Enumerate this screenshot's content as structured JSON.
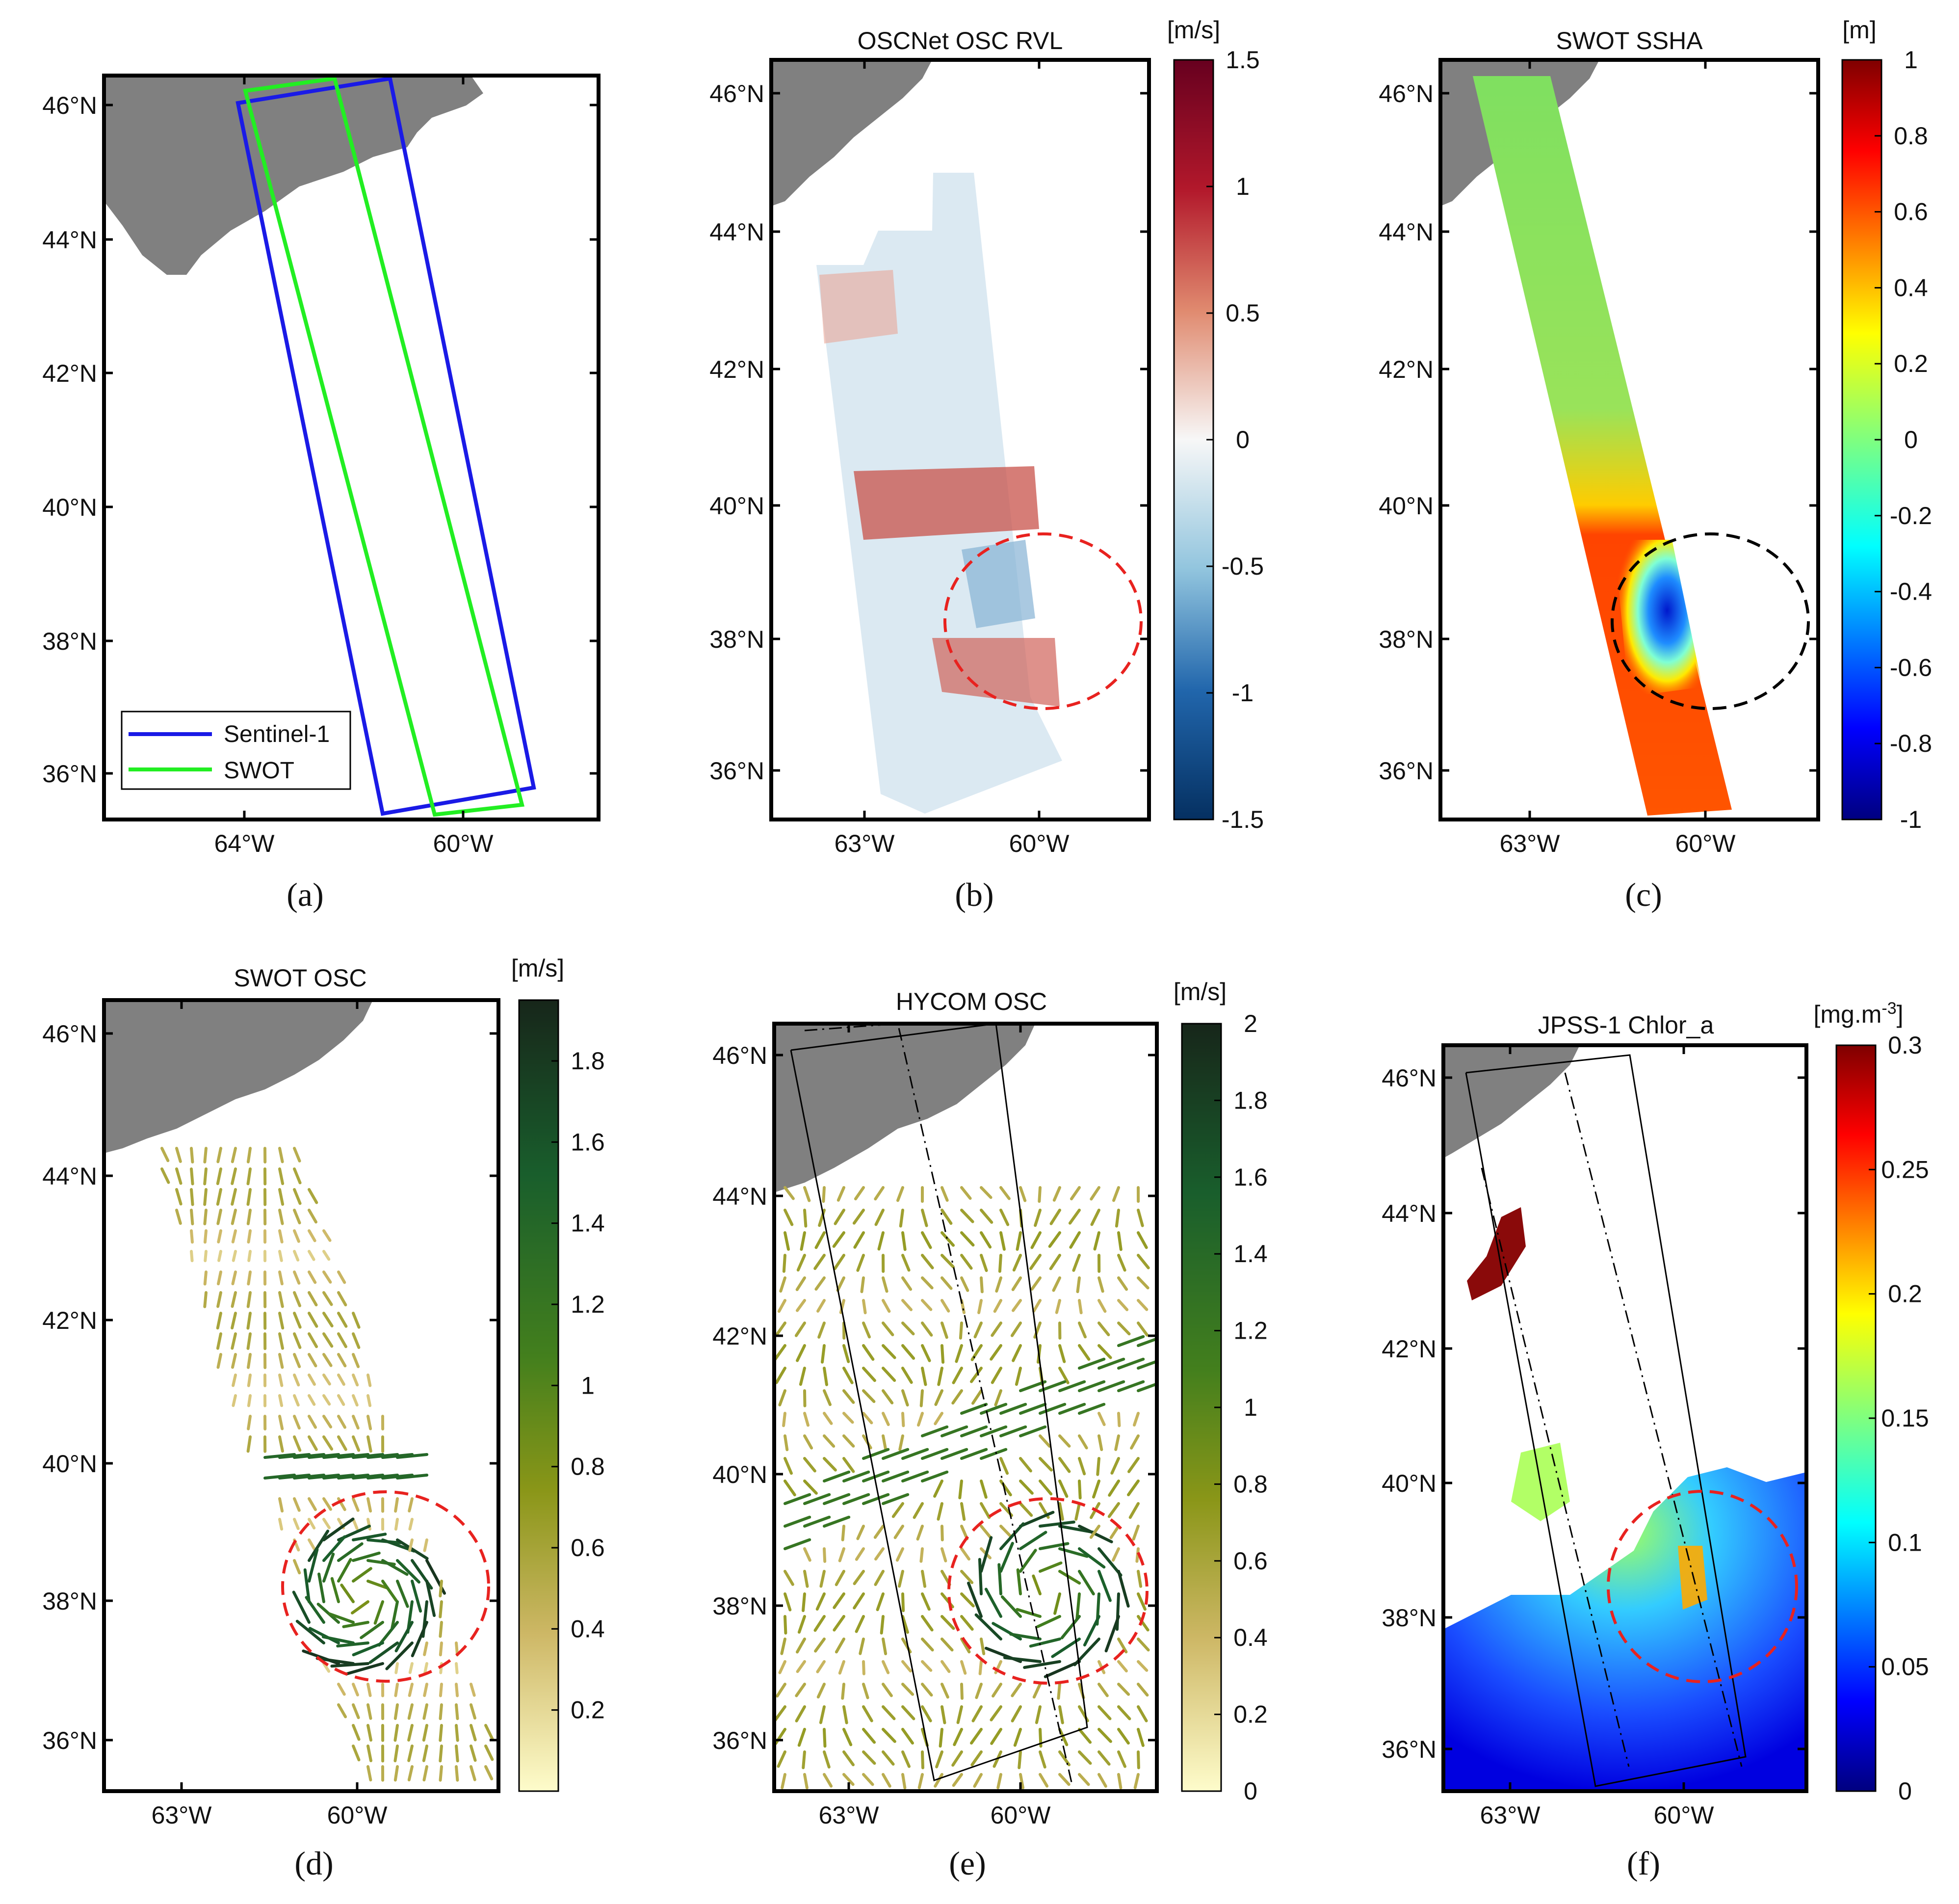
{
  "figure": {
    "captions": [
      "(a)",
      "(b)",
      "(c)",
      "(d)",
      "(e)",
      "(f)"
    ]
  },
  "chart_data": [
    {
      "panel": "a",
      "type": "map",
      "title": "",
      "lat_ticks": [
        "46°N",
        "44°N",
        "42°N",
        "40°N",
        "38°N",
        "36°N"
      ],
      "lon_ticks": [
        "64°W",
        "60°W"
      ],
      "legend": [
        {
          "label": "Sentinel-1",
          "color": "#1a1ae6"
        },
        {
          "label": "SWOT",
          "color": "#22ee22"
        }
      ],
      "legend_position": "bottom-left"
    },
    {
      "panel": "b",
      "type": "heatmap",
      "title": "OSCNet OSC RVL",
      "unit": "[m/s]",
      "colormap": "RdBu",
      "clim": [
        -1.5,
        1.5
      ],
      "colorbar_ticks": [
        "1.5",
        "1",
        "0.5",
        "0",
        "-0.5",
        "-1",
        "-1.5"
      ],
      "lat_ticks": [
        "46°N",
        "44°N",
        "42°N",
        "40°N",
        "38°N",
        "36°N"
      ],
      "lon_ticks": [
        "63°W",
        "60°W"
      ],
      "eddy_circle_color": "#e8221f"
    },
    {
      "panel": "c",
      "type": "heatmap",
      "title": "SWOT SSHA",
      "unit": "[m]",
      "colormap": "jet",
      "clim": [
        -1,
        1
      ],
      "colorbar_ticks": [
        "1",
        "0.8",
        "0.6",
        "0.4",
        "0.2",
        "0",
        "-0.2",
        "-0.4",
        "-0.6",
        "-0.8",
        "-1"
      ],
      "lat_ticks": [
        "46°N",
        "44°N",
        "42°N",
        "40°N",
        "38°N",
        "36°N"
      ],
      "lon_ticks": [
        "63°W",
        "60°W"
      ],
      "eddy_circle_color": "#000000"
    },
    {
      "panel": "d",
      "type": "quiver",
      "title": "SWOT OSC",
      "unit": "[m/s]",
      "colormap": "speed",
      "clim": [
        0,
        1.95
      ],
      "colorbar_ticks": [
        "1.8",
        "1.6",
        "1.4",
        "1.2",
        "1",
        "0.8",
        "0.6",
        "0.4",
        "0.2"
      ],
      "lat_ticks": [
        "46°N",
        "44°N",
        "42°N",
        "40°N",
        "38°N",
        "36°N"
      ],
      "lon_ticks": [
        "63°W",
        "60°W"
      ],
      "eddy_circle_color": "#e8221f"
    },
    {
      "panel": "e",
      "type": "quiver",
      "title": "HYCOM OSC",
      "unit": "[m/s]",
      "colormap": "speed",
      "clim": [
        0,
        2
      ],
      "colorbar_ticks": [
        "2",
        "1.8",
        "1.6",
        "1.4",
        "1.2",
        "1",
        "0.8",
        "0.6",
        "0.4",
        "0.2",
        "0"
      ],
      "lat_ticks": [
        "46°N",
        "44°N",
        "42°N",
        "40°N",
        "38°N",
        "36°N"
      ],
      "lon_ticks": [
        "63°W",
        "60°W"
      ],
      "eddy_circle_color": "#e8221f"
    },
    {
      "panel": "f",
      "type": "heatmap",
      "title": "JPSS-1 Chlor_a",
      "unit": "[mg.m",
      "unit_sup": "-3",
      "unit_end": "]",
      "colormap": "jet",
      "clim": [
        0,
        0.3
      ],
      "colorbar_ticks": [
        "0.3",
        "0.25",
        "0.2",
        "0.15",
        "0.1",
        "0.05",
        "0"
      ],
      "lat_ticks": [
        "46°N",
        "44°N",
        "42°N",
        "40°N",
        "38°N",
        "36°N"
      ],
      "lon_ticks": [
        "63°W",
        "60°W"
      ],
      "eddy_circle_color": "#e8221f"
    }
  ]
}
